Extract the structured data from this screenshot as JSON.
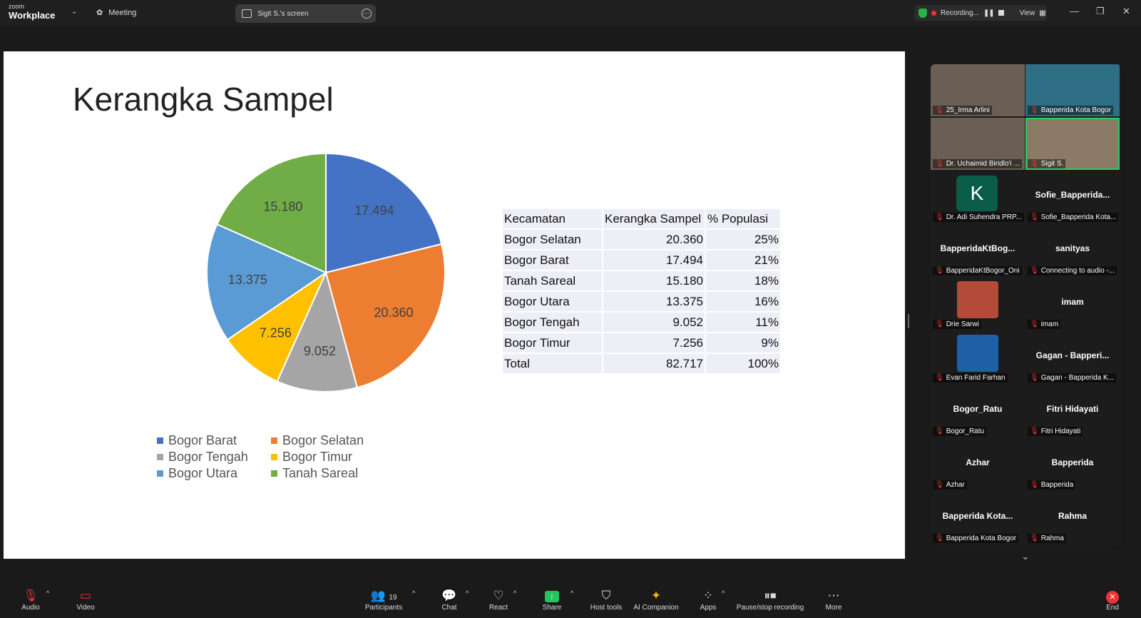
{
  "topbar": {
    "logo_small": "zoom",
    "logo_big": "Workplace",
    "meeting_label": "Meeting",
    "screen_label": "Sigit S.'s screen",
    "recording_label": "Recording...",
    "view_label": "View"
  },
  "slide": {
    "title": "Kerangka Sampel",
    "pie_labels": [
      "17.494",
      "20.360",
      "9.052",
      "7.256",
      "13.375",
      "15.180"
    ],
    "legend": [
      {
        "label": "Bogor Barat",
        "color": "#4472C4"
      },
      {
        "label": "Bogor Selatan",
        "color": "#ED7D31"
      },
      {
        "label": "Bogor Tengah",
        "color": "#A5A5A5"
      },
      {
        "label": "Bogor Timur",
        "color": "#FFC000"
      },
      {
        "label": "Bogor Utara",
        "color": "#5B9BD5"
      },
      {
        "label": "Tanah Sareal",
        "color": "#70AD47"
      }
    ],
    "table": {
      "headers": [
        "Kecamatan",
        "Kerangka Sampel",
        "% Populasi"
      ],
      "rows": [
        [
          "Bogor Selatan",
          "20.360",
          "25%"
        ],
        [
          "Bogor Barat",
          "17.494",
          "21%"
        ],
        [
          "Tanah Sareal",
          "15.180",
          "18%"
        ],
        [
          "Bogor Utara",
          "13.375",
          "16%"
        ],
        [
          "Bogor Tengah",
          "9.052",
          "11%"
        ],
        [
          "Bogor Timur",
          "7.256",
          "9%"
        ],
        [
          "Total",
          "82.717",
          "100%"
        ]
      ]
    }
  },
  "chart_data": {
    "type": "pie",
    "categories": [
      "Bogor Barat",
      "Bogor Selatan",
      "Bogor Tengah",
      "Bogor Timur",
      "Bogor Utara",
      "Tanah Sareal"
    ],
    "values": [
      17494,
      20360,
      9052,
      7256,
      13375,
      15180
    ],
    "colors": [
      "#4472C4",
      "#ED7D31",
      "#A5A5A5",
      "#FFC000",
      "#5B9BD5",
      "#70AD47"
    ],
    "legend": "bottom"
  },
  "participants": [
    {
      "name": "",
      "label": "25_Irma Arlini",
      "video": true
    },
    {
      "name": "",
      "label": "Bapperida Kota Bogor",
      "video": true
    },
    {
      "name": "",
      "label": "Dr. Uchaimid Biridlo'i ...",
      "video": true
    },
    {
      "name": "",
      "label": "Sigit S.",
      "video": true,
      "active": true
    },
    {
      "name": "K",
      "label": "Dr. Adi Suhendra PRP...",
      "avatar": "K"
    },
    {
      "name": "Sofie_Bapperida...",
      "label": "Sofie_Bapperida Kota..."
    },
    {
      "name": "BapperidaKtBog...",
      "label": "BapperidaKtBogor_Oni"
    },
    {
      "name": "sanityas",
      "label": "Connecting to audio -..."
    },
    {
      "name": "",
      "label": "Drie Sarwi",
      "photo": true
    },
    {
      "name": "imam",
      "label": "imam"
    },
    {
      "name": "",
      "label": "Evan Farid Farhan",
      "photo": true
    },
    {
      "name": "Gagan - Bapperi...",
      "label": "Gagan - Bapperida K..."
    },
    {
      "name": "Bogor_Ratu",
      "label": "Bogor_Ratu"
    },
    {
      "name": "Fitri Hidayati",
      "label": "Fitri Hidayati"
    },
    {
      "name": "Azhar",
      "label": "Azhar"
    },
    {
      "name": "Bapperida",
      "label": "Bapperida"
    },
    {
      "name": "Bapperida Kota...",
      "label": "Bapperida Kota Bogor"
    },
    {
      "name": "Rahma",
      "label": "Rahma"
    }
  ],
  "toolbar": {
    "audio": "Audio",
    "video": "Video",
    "participants": "Participants",
    "participants_count": "19",
    "chat": "Chat",
    "react": "React",
    "share": "Share",
    "host_tools": "Host tools",
    "ai_companion": "AI Companion",
    "apps": "Apps",
    "pause_stop": "Pause/stop recording",
    "more": "More",
    "end": "End"
  }
}
